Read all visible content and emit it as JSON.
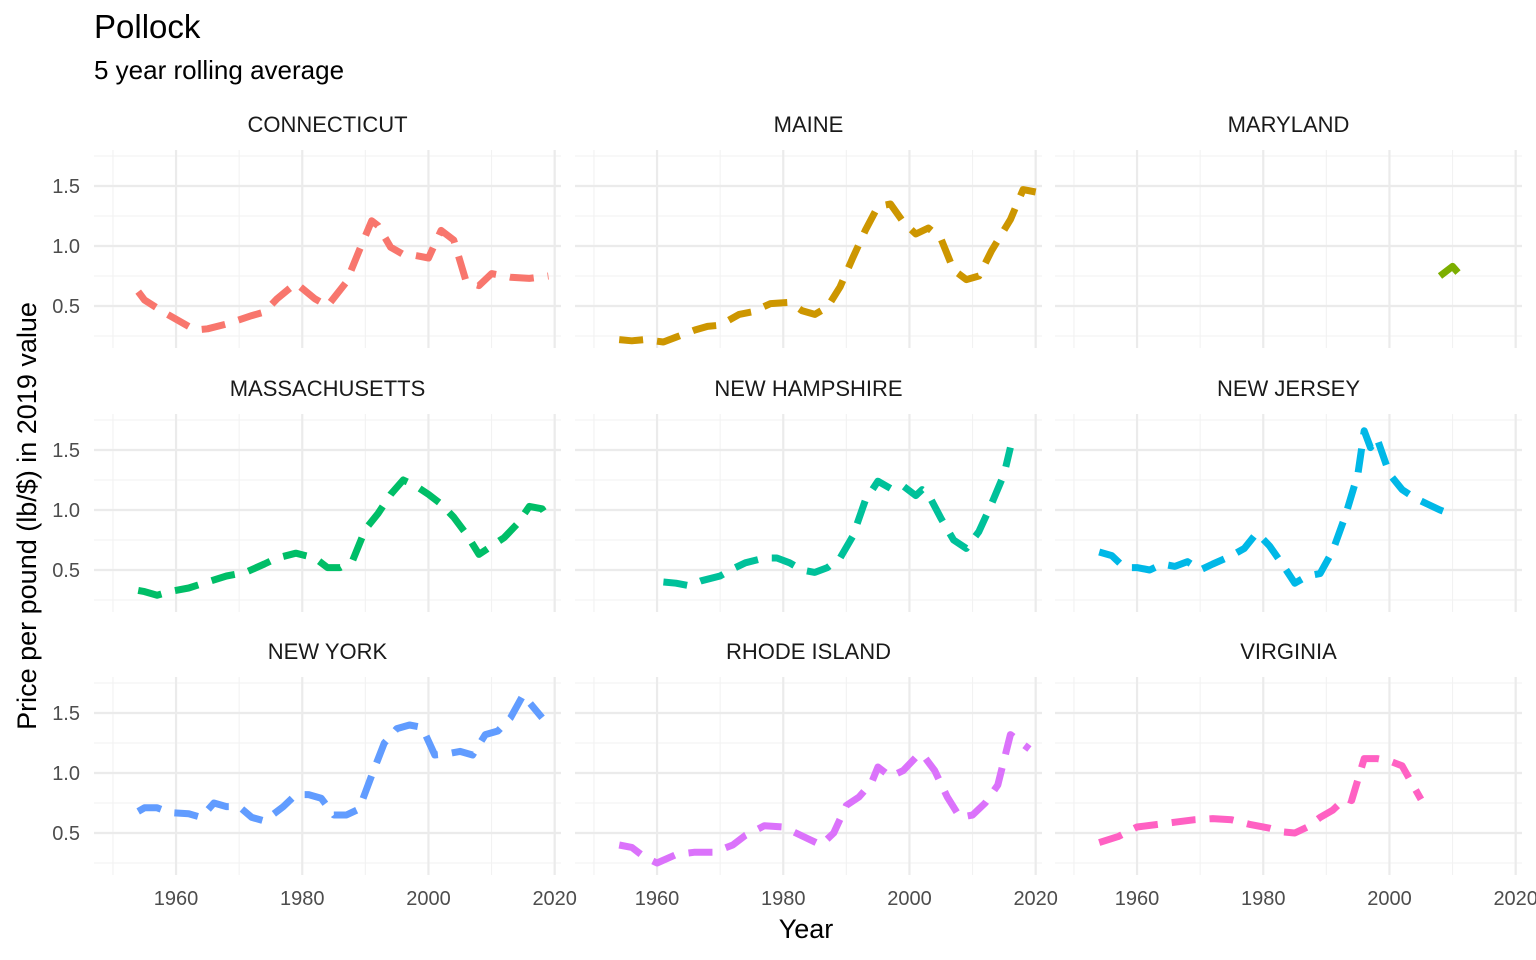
{
  "chart_data": {
    "type": "line",
    "title": "Pollock",
    "subtitle": "5 year rolling average",
    "xlabel": "Year",
    "ylabel": "Price per pound (lb/$) in 2019 value",
    "xlim": [
      1947,
      2021
    ],
    "ylim": [
      0.15,
      1.8
    ],
    "x_ticks": [
      1960,
      1980,
      2000,
      2020
    ],
    "x_tick_labels": [
      "1960",
      "1980",
      "2000",
      "2020"
    ],
    "y_ticks": [
      0.5,
      1.0,
      1.5
    ],
    "y_tick_labels": [
      "0.5",
      "1.0",
      "1.5"
    ],
    "line_style": "dashed",
    "grid": true,
    "panels": [
      {
        "name": "CONNECTICUT",
        "color": "#F8766D",
        "x": [
          1954,
          1955,
          1958,
          1963,
          1965,
          1968,
          1972,
          1974,
          1976,
          1979,
          1982,
          1984,
          1987,
          1989,
          1991,
          1992,
          1994,
          1996,
          1998,
          2000,
          2002,
          2004,
          2006,
          2008,
          2010,
          2013,
          2016,
          2019
        ],
        "y": [
          0.62,
          0.55,
          0.45,
          0.3,
          0.31,
          0.35,
          0.42,
          0.45,
          0.56,
          0.69,
          0.56,
          0.5,
          0.7,
          0.96,
          1.21,
          1.17,
          0.99,
          0.93,
          0.92,
          0.9,
          1.13,
          1.05,
          0.7,
          0.67,
          0.77,
          0.74,
          0.73,
          0.75
        ]
      },
      {
        "name": "MAINE",
        "color": "#CD9600",
        "x": [
          1954,
          1956,
          1958,
          1961,
          1963,
          1966,
          1968,
          1970,
          1973,
          1975,
          1978,
          1981,
          1983,
          1985,
          1987,
          1989,
          1991,
          1993,
          1995,
          1997,
          1999,
          2001,
          2003,
          2005,
          2007,
          2009,
          2011,
          2013,
          2016,
          2018,
          2020
        ],
        "y": [
          0.22,
          0.21,
          0.22,
          0.2,
          0.24,
          0.3,
          0.33,
          0.34,
          0.43,
          0.45,
          0.52,
          0.53,
          0.46,
          0.43,
          0.49,
          0.66,
          0.9,
          1.13,
          1.33,
          1.35,
          1.2,
          1.1,
          1.15,
          1.06,
          0.8,
          0.72,
          0.75,
          0.96,
          1.22,
          1.47,
          1.45
        ]
      },
      {
        "name": "MARYLAND",
        "color": "#7CAE00",
        "x": [
          2008,
          2010,
          2012
        ],
        "y": [
          0.75,
          0.83,
          0.71
        ]
      },
      {
        "name": "MASSACHUSETTS",
        "color": "#00BE67",
        "x": [
          1954,
          1955,
          1957,
          1959,
          1962,
          1965,
          1968,
          1971,
          1974,
          1976,
          1979,
          1982,
          1984,
          1986,
          1988,
          1990,
          1992,
          1994,
          1996,
          1998,
          2000,
          2002,
          2004,
          2006,
          2008,
          2010,
          2012,
          2014,
          2016,
          2018,
          2019
        ],
        "y": [
          0.33,
          0.32,
          0.29,
          0.32,
          0.35,
          0.4,
          0.45,
          0.48,
          0.55,
          0.6,
          0.64,
          0.6,
          0.52,
          0.52,
          0.58,
          0.84,
          0.97,
          1.13,
          1.25,
          1.2,
          1.13,
          1.05,
          0.94,
          0.8,
          0.63,
          0.7,
          0.77,
          0.88,
          1.03,
          1.01,
          0.93
        ]
      },
      {
        "name": "NEW HAMPSHIRE",
        "color": "#00C19A",
        "x": [
          1961,
          1963,
          1965,
          1967,
          1970,
          1972,
          1974,
          1977,
          1979,
          1981,
          1983,
          1985,
          1987,
          1989,
          1991,
          1993,
          1995,
          1997,
          1999,
          2001,
          2002,
          2003,
          2005,
          2007,
          2009,
          2011,
          2013,
          2015,
          2016
        ],
        "y": [
          0.4,
          0.39,
          0.37,
          0.41,
          0.45,
          0.51,
          0.56,
          0.6,
          0.6,
          0.56,
          0.5,
          0.48,
          0.52,
          0.6,
          0.78,
          1.08,
          1.24,
          1.18,
          1.2,
          1.12,
          1.17,
          1.13,
          0.93,
          0.75,
          0.68,
          0.82,
          1.05,
          1.3,
          1.52
        ]
      },
      {
        "name": "NEW JERSEY",
        "color": "#00B8E7",
        "x": [
          1954,
          1956,
          1958,
          1960,
          1962,
          1964,
          1966,
          1968,
          1970,
          1972,
          1975,
          1977,
          1979,
          1981,
          1983,
          1985,
          1987,
          1989,
          1991,
          1993,
          1995,
          1996,
          1997,
          1998,
          2000,
          2002,
          2004,
          2006,
          2008,
          2010
        ],
        "y": [
          0.65,
          0.62,
          0.52,
          0.52,
          0.5,
          0.55,
          0.53,
          0.57,
          0.5,
          0.55,
          0.62,
          0.68,
          0.81,
          0.7,
          0.55,
          0.39,
          0.45,
          0.47,
          0.66,
          0.95,
          1.3,
          1.66,
          1.52,
          1.6,
          1.3,
          1.17,
          1.1,
          1.05,
          1.0,
          0.96
        ]
      },
      {
        "name": "NEW YORK",
        "color": "#619CFF",
        "x": [
          1954,
          1955,
          1957,
          1959,
          1962,
          1964,
          1966,
          1968,
          1970,
          1972,
          1974,
          1977,
          1979,
          1981,
          1983,
          1985,
          1987,
          1989,
          1991,
          1993,
          1995,
          1997,
          1999,
          2001,
          2003,
          2005,
          2007,
          2009,
          2011,
          2013,
          2015,
          2018
        ],
        "y": [
          0.68,
          0.71,
          0.71,
          0.67,
          0.66,
          0.63,
          0.75,
          0.72,
          0.72,
          0.63,
          0.6,
          0.72,
          0.82,
          0.82,
          0.79,
          0.65,
          0.65,
          0.7,
          0.98,
          1.25,
          1.37,
          1.4,
          1.38,
          1.15,
          1.16,
          1.18,
          1.15,
          1.32,
          1.35,
          1.46,
          1.65,
          1.46
        ]
      },
      {
        "name": "RHODE ISLAND",
        "color": "#DB72FB",
        "x": [
          1954,
          1956,
          1958,
          1960,
          1963,
          1966,
          1969,
          1972,
          1974,
          1977,
          1980,
          1982,
          1984,
          1986,
          1988,
          1990,
          1992,
          1994,
          1995,
          1997,
          1999,
          2001,
          2002,
          2004,
          2006,
          2008,
          2010,
          2012,
          2014,
          2016,
          2019
        ],
        "y": [
          0.4,
          0.38,
          0.3,
          0.25,
          0.32,
          0.34,
          0.34,
          0.4,
          0.48,
          0.56,
          0.55,
          0.5,
          0.45,
          0.4,
          0.5,
          0.73,
          0.8,
          0.92,
          1.05,
          0.97,
          1.02,
          1.13,
          1.16,
          1.02,
          0.8,
          0.63,
          0.65,
          0.75,
          0.9,
          1.32,
          1.2
        ]
      },
      {
        "name": "VIRGINIA",
        "color": "#FF61C3",
        "x": [
          1954,
          1957,
          1960,
          1963,
          1966,
          1969,
          1972,
          1975,
          1978,
          1981,
          1983,
          1985,
          1987,
          1989,
          1991,
          1993,
          1994,
          1996,
          1998,
          2000,
          2002,
          2005
        ],
        "y": [
          0.42,
          0.47,
          0.55,
          0.57,
          0.59,
          0.61,
          0.62,
          0.61,
          0.57,
          0.54,
          0.51,
          0.5,
          0.55,
          0.63,
          0.69,
          0.79,
          0.77,
          1.12,
          1.12,
          1.1,
          1.06,
          0.78
        ]
      }
    ]
  }
}
